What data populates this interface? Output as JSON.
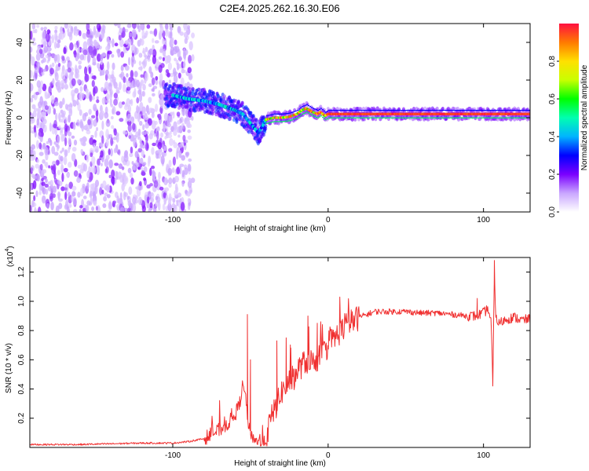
{
  "title": "C2E4.2025.262.16.30.E06",
  "chart_data": [
    {
      "type": "heatmap",
      "name": "spectrogram",
      "xlabel": "Height of straight line (km)",
      "ylabel": "Frequency (Hz)",
      "xlim": [
        -192,
        130
      ],
      "ylim": [
        -50,
        50
      ],
      "xticks": [
        -100,
        0,
        100
      ],
      "xtick_labels": [
        "-100",
        "0",
        "100"
      ],
      "yticks": [
        -40,
        -20,
        0,
        20,
        40
      ],
      "ytick_labels": [
        "-40",
        "-20",
        "0",
        "20",
        "40"
      ],
      "colorbar": {
        "label": "Normalized spectral amplitude",
        "range": [
          0,
          1
        ],
        "ticks": [
          0.0,
          0.2,
          0.4,
          0.6,
          0.8
        ],
        "tick_labels": [
          "0.0",
          "0.2",
          "0.4",
          "0.6",
          "0.8"
        ],
        "colormap": [
          "#ffffff",
          "#c9a6ff",
          "#7a00ff",
          "#0000ff",
          "#00b4ff",
          "#00ffb0",
          "#00ff00",
          "#c8ff00",
          "#ffe000",
          "#ff7a00",
          "#ff1040"
        ]
      },
      "ridge": {
        "description": "dominant frequency track",
        "x": [
          -100,
          -90,
          -80,
          -70,
          -60,
          -55,
          -50,
          -45,
          -42,
          -40,
          -35,
          -30,
          -25,
          -20,
          -17,
          -14,
          -10,
          -7,
          -5,
          -2,
          0,
          10,
          20,
          40,
          60,
          80,
          90,
          100,
          110,
          120,
          130
        ],
        "y": [
          12,
          10,
          9,
          7,
          4,
          2,
          -3,
          -8,
          -4,
          -1,
          0,
          0,
          0.5,
          2,
          4,
          5,
          3,
          2,
          3,
          1,
          2,
          2,
          2,
          2,
          2,
          2,
          2,
          2,
          2,
          2,
          2
        ]
      },
      "noise_region": {
        "x_from": -192,
        "x_to": -95
      }
    },
    {
      "type": "line",
      "name": "snr",
      "xlabel": "Height of straight line (km)",
      "ylabel": "SNR (10 * v/v)",
      "multiplier_label": "(x10",
      "multiplier_exponent": "4",
      "xlim": [
        -192,
        130
      ],
      "ylim": [
        0.0,
        1.3
      ],
      "xticks": [
        -100,
        0,
        100
      ],
      "xtick_labels": [
        "-100",
        "0",
        "100"
      ],
      "yticks": [
        0.2,
        0.4,
        0.6,
        0.8,
        1.0,
        1.2
      ],
      "ytick_labels": [
        "0.2",
        "0.4",
        "0.6",
        "0.8",
        "1.0",
        "1.2"
      ],
      "color": "#f03030",
      "series": [
        {
          "name": "SNR",
          "x": [
            -192,
            -180,
            -160,
            -140,
            -120,
            -100,
            -90,
            -80,
            -75,
            -70,
            -65,
            -60,
            -57,
            -55,
            -53,
            -52,
            -50,
            -48,
            -45,
            -42,
            -40,
            -38,
            -35,
            -32,
            -30,
            -28,
            -25,
            -22,
            -20,
            -18,
            -15,
            -12,
            -10,
            -8,
            -5,
            -2,
            0,
            5,
            10,
            15,
            20,
            25,
            30,
            40,
            50,
            60,
            70,
            80,
            90,
            95,
            100,
            103,
            105,
            106,
            107,
            108,
            110,
            115,
            120,
            125,
            130
          ],
          "y": [
            0.02,
            0.02,
            0.02,
            0.025,
            0.03,
            0.03,
            0.04,
            0.06,
            0.09,
            0.12,
            0.16,
            0.22,
            0.3,
            0.42,
            0.35,
            0.2,
            0.1,
            0.06,
            0.04,
            0.03,
            0.05,
            0.15,
            0.25,
            0.32,
            0.38,
            0.4,
            0.45,
            0.48,
            0.52,
            0.55,
            0.58,
            0.6,
            0.58,
            0.6,
            0.62,
            0.66,
            0.7,
            0.76,
            0.82,
            0.86,
            0.89,
            0.91,
            0.93,
            0.93,
            0.93,
            0.92,
            0.92,
            0.91,
            0.9,
            0.9,
            0.92,
            0.95,
            0.85,
            0.42,
            1.2,
            0.88,
            0.85,
            0.88,
            0.89,
            0.87,
            0.88
          ]
        }
      ],
      "spikes": [
        {
          "x": -52,
          "y": 0.91
        },
        {
          "x": -50,
          "y": 0.6
        },
        {
          "x": -33,
          "y": 0.73
        },
        {
          "x": -27,
          "y": 0.75
        },
        {
          "x": -24,
          "y": 0.68
        },
        {
          "x": -13,
          "y": 0.9
        },
        {
          "x": -7,
          "y": 0.85
        },
        {
          "x": 107,
          "y": 1.28
        },
        {
          "x": 106,
          "y": 0.42
        },
        {
          "x": 96,
          "y": 1.02
        }
      ]
    }
  ]
}
